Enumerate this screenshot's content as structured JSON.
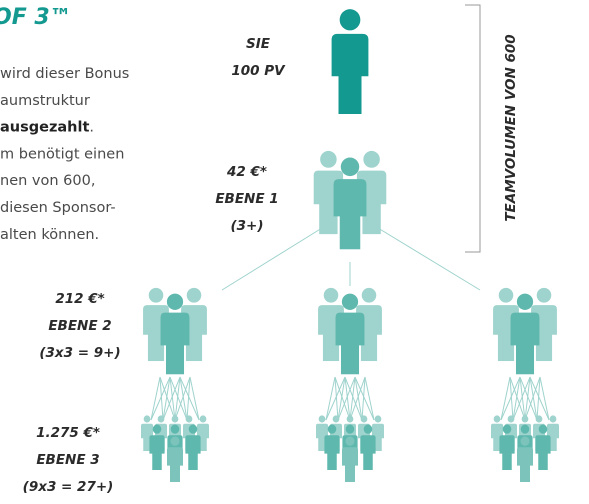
{
  "heading": "OF 3™",
  "paragraph": [
    [
      "wird dieser Bonus"
    ],
    [
      "aumstruktur"
    ],
    [
      "ausgezahlt",
      "."
    ],
    [
      "m benötigt einen"
    ],
    [
      "nen von 600,"
    ],
    [
      "diesen Sponsor-"
    ],
    [
      "alten können."
    ]
  ],
  "levels": [
    {
      "lines": [
        "SIE",
        "100 PV"
      ]
    },
    {
      "lines": [
        "42 €*",
        "EBENE 1",
        "(3+)"
      ]
    },
    {
      "lines": [
        "212 €*",
        "EBENE 2",
        "(3x3 = 9+)"
      ]
    },
    {
      "lines": [
        "1.275 €*",
        "EBENE 3",
        "(9x3 = 27+)"
      ]
    }
  ],
  "side_label": "TEAMVOLUMEN VON 600"
}
